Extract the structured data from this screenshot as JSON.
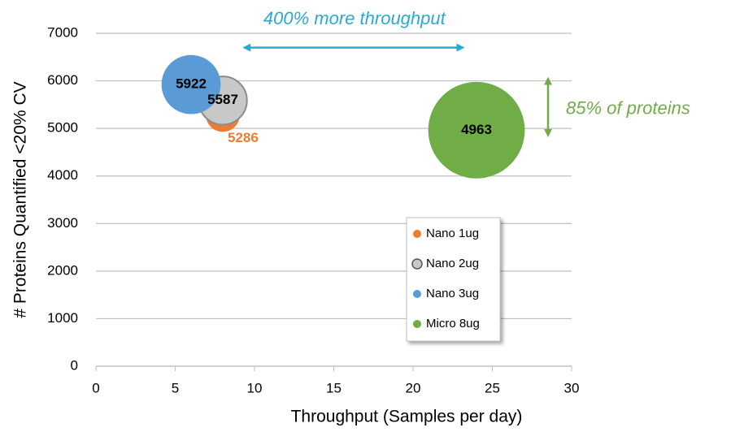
{
  "chart_data": {
    "type": "bubble",
    "annotations": [
      "400% more throughput",
      "85% of proteins"
    ],
    "x_label": "Throughput (Samples per day)",
    "y_label": "# Proteins Quantified <20% CV",
    "xlim": [
      0,
      30
    ],
    "xticks": [
      0,
      5,
      10,
      15,
      20,
      25,
      30
    ],
    "ylim": [
      0,
      7000
    ],
    "yticks": [
      0,
      1000,
      2000,
      3000,
      4000,
      5000,
      6000,
      7000
    ],
    "grid": true,
    "legend": "lower-right",
    "series": [
      {
        "name": "Nano 1ug",
        "color": "#ed7d31",
        "x": [
          8
        ],
        "values": [
          5286
        ],
        "sizes": [
          1
        ]
      },
      {
        "name": "Nano 2ug",
        "color": "#c8c8c8",
        "x": [
          8
        ],
        "values": [
          5587
        ],
        "sizes": [
          2
        ]
      },
      {
        "name": "Nano 3ug",
        "color": "#5b9bd5",
        "x": [
          6
        ],
        "values": [
          5922
        ],
        "sizes": [
          3
        ]
      },
      {
        "name": "Micro 8ug",
        "color": "#70ad47",
        "x": [
          24
        ],
        "values": [
          4963
        ],
        "sizes": [
          8
        ]
      }
    ]
  }
}
